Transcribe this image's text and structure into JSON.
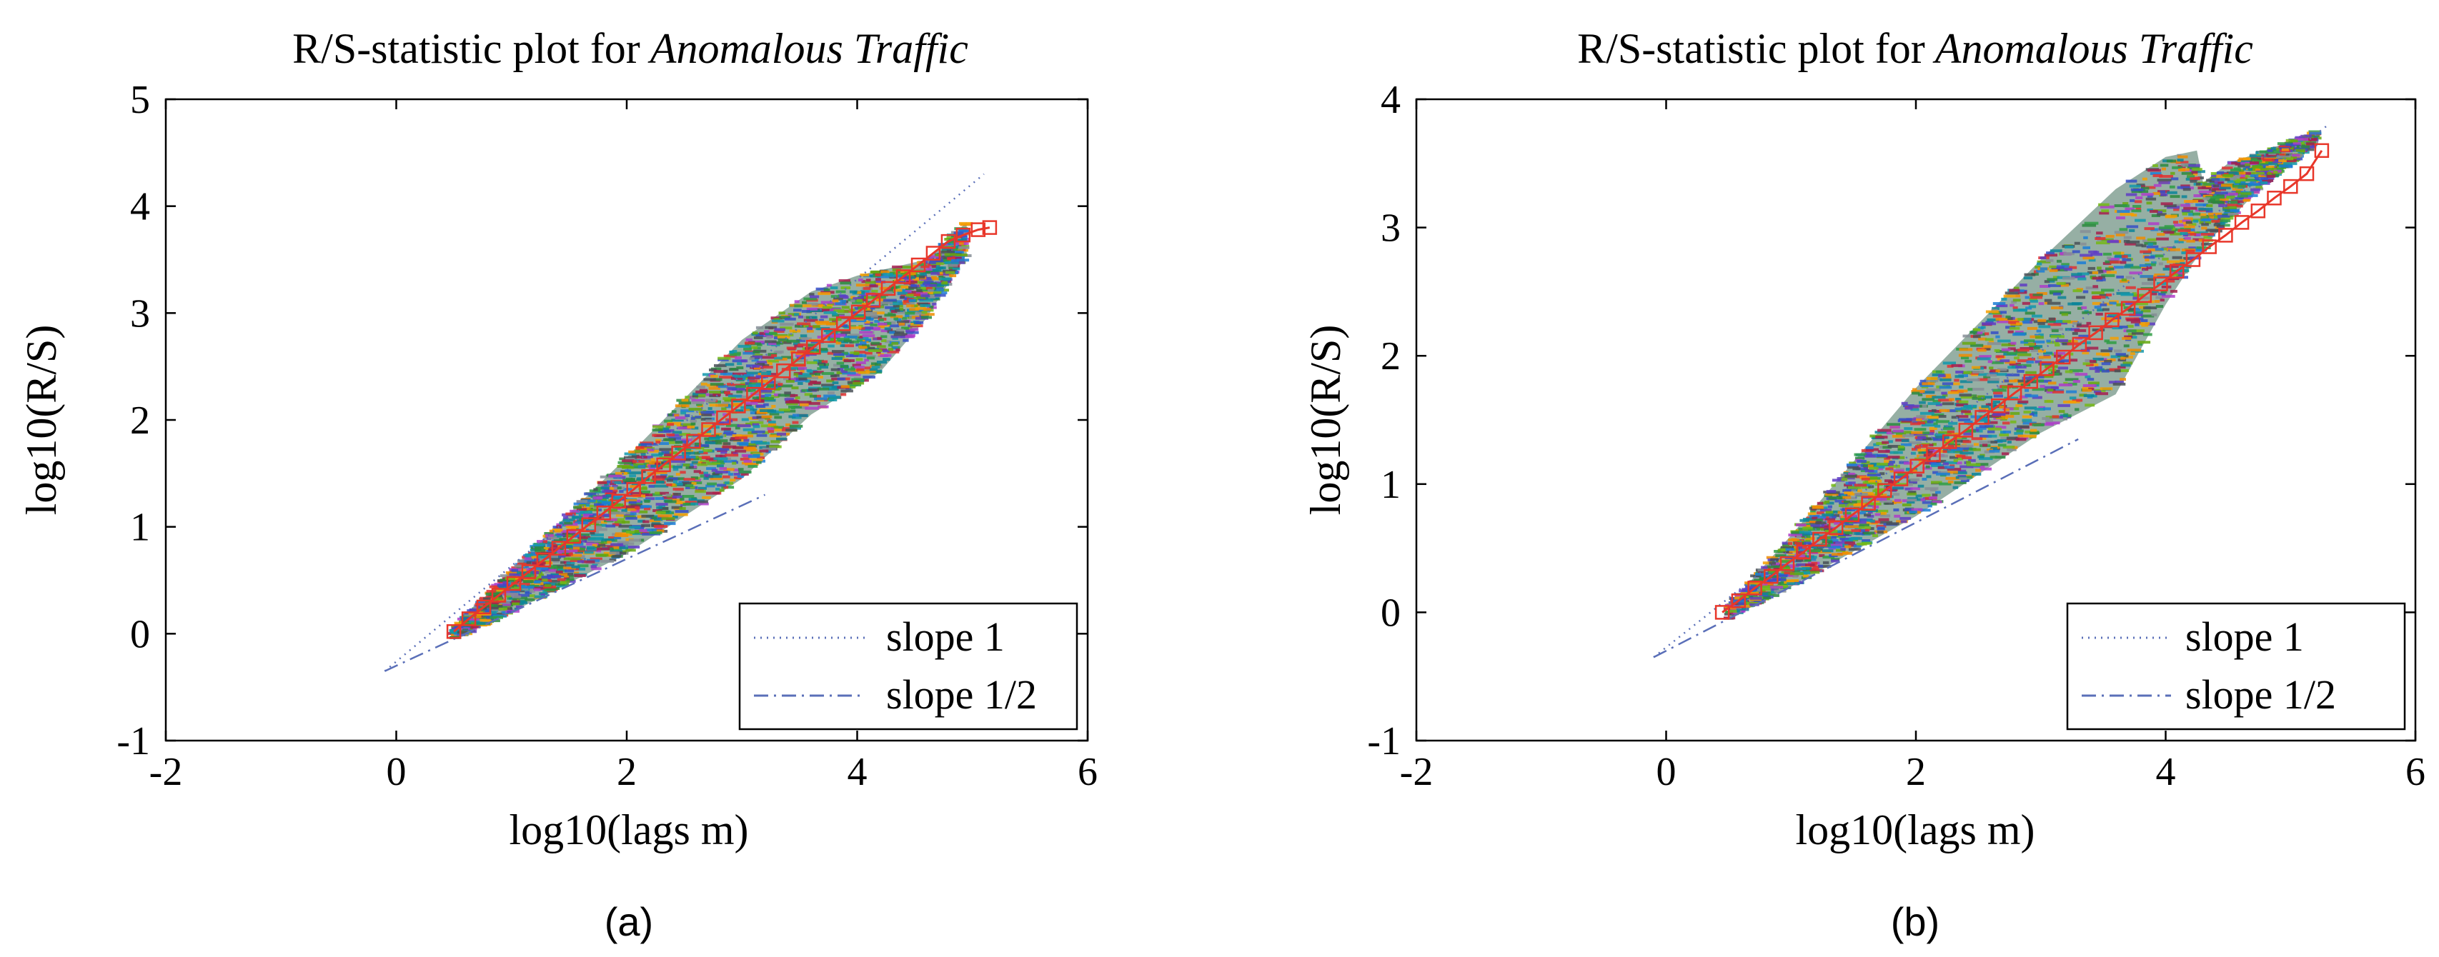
{
  "chart_data": [
    {
      "type": "scatter",
      "panel_label": "(a)",
      "title": "R/S-statistic plot for",
      "title_italic": "Anomalous Traffic",
      "xlabel": "log10(lags m)",
      "ylabel": "log10(R/S)",
      "xlim": [
        -2,
        6
      ],
      "ylim": [
        -1,
        5
      ],
      "xticks": [
        -2,
        0,
        2,
        4,
        6
      ],
      "yticks": [
        -1,
        0,
        1,
        2,
        3,
        4,
        5
      ],
      "xtick_labels": [
        "-2",
        "0",
        "2",
        "4",
        "6"
      ],
      "ytick_labels": [
        "-1",
        "0",
        "1",
        "2",
        "3",
        "4",
        "5"
      ],
      "legend": {
        "position": "bottom-right",
        "entries": [
          {
            "label": "slope 1",
            "style": "dotted"
          },
          {
            "label": "slope 1/2",
            "style": "dash-dot"
          }
        ]
      },
      "reference_lines": [
        {
          "name": "slope 1",
          "x": [
            -0.1,
            5.1
          ],
          "y": [
            -0.35,
            4.3
          ]
        },
        {
          "name": "slope 1/2",
          "x": [
            -0.1,
            3.2
          ],
          "y": [
            -0.35,
            1.3
          ]
        }
      ],
      "cloud": {
        "upper": [
          [
            0.5,
            0.05
          ],
          [
            1.0,
            0.6
          ],
          [
            2.0,
            1.65
          ],
          [
            3.0,
            2.75
          ],
          [
            3.6,
            3.2
          ],
          [
            4.0,
            3.35
          ],
          [
            4.6,
            3.5
          ],
          [
            4.95,
            3.85
          ]
        ],
        "lower": [
          [
            0.5,
            -0.05
          ],
          [
            1.0,
            0.2
          ],
          [
            2.0,
            0.75
          ],
          [
            3.0,
            1.45
          ],
          [
            3.6,
            2.05
          ],
          [
            4.2,
            2.45
          ],
          [
            4.6,
            2.95
          ],
          [
            4.95,
            3.55
          ]
        ]
      },
      "fit_markers": {
        "x": [
          0.5,
          0.63,
          0.76,
          0.89,
          1.02,
          1.15,
          1.28,
          1.41,
          1.54,
          1.67,
          1.8,
          1.93,
          2.06,
          2.19,
          2.32,
          2.45,
          2.58,
          2.71,
          2.84,
          2.97,
          3.1,
          3.23,
          3.36,
          3.49,
          3.62,
          3.75,
          3.88,
          4.01,
          4.14,
          4.27,
          4.4,
          4.53,
          4.66,
          4.79,
          4.92,
          5.05,
          5.15
        ],
        "y": [
          0.02,
          0.14,
          0.25,
          0.36,
          0.47,
          0.58,
          0.69,
          0.8,
          0.91,
          1.02,
          1.13,
          1.24,
          1.35,
          1.47,
          1.58,
          1.69,
          1.8,
          1.91,
          2.02,
          2.13,
          2.24,
          2.35,
          2.46,
          2.57,
          2.68,
          2.79,
          2.9,
          3.01,
          3.12,
          3.23,
          3.34,
          3.45,
          3.56,
          3.67,
          3.73,
          3.78,
          3.8
        ]
      }
    },
    {
      "type": "scatter",
      "panel_label": "(b)",
      "title": "R/S-statistic plot for",
      "title_italic": "Anomalous Traffic",
      "xlabel": "log10(lags m)",
      "ylabel": "log10(R/S)",
      "xlim": [
        -2,
        6
      ],
      "ylim": [
        -1,
        4
      ],
      "xticks": [
        -2,
        0,
        2,
        4,
        6
      ],
      "yticks": [
        -1,
        0,
        1,
        2,
        3,
        4
      ],
      "xtick_labels": [
        "-2",
        "0",
        "2",
        "4",
        "6"
      ],
      "ytick_labels": [
        "-1",
        "0",
        "1",
        "2",
        "3",
        "4"
      ],
      "legend": {
        "position": "bottom-right",
        "entries": [
          {
            "label": "slope 1",
            "style": "dotted"
          },
          {
            "label": "slope 1/2",
            "style": "dash-dot"
          }
        ]
      },
      "reference_lines": [
        {
          "name": "slope 1",
          "x": [
            -0.1,
            5.3
          ],
          "y": [
            -0.35,
            3.8
          ]
        },
        {
          "name": "slope 1/2",
          "x": [
            -0.1,
            3.3
          ],
          "y": [
            -0.35,
            1.35
          ]
        }
      ],
      "cloud": {
        "upper": [
          [
            0.5,
            0.05
          ],
          [
            1.0,
            0.6
          ],
          [
            2.0,
            1.75
          ],
          [
            3.0,
            2.75
          ],
          [
            3.6,
            3.3
          ],
          [
            4.0,
            3.55
          ],
          [
            4.25,
            3.6
          ],
          [
            4.3,
            3.35
          ],
          [
            4.5,
            3.5
          ],
          [
            4.8,
            3.6
          ],
          [
            5.2,
            3.75
          ]
        ],
        "lower": [
          [
            0.5,
            -0.05
          ],
          [
            1.0,
            0.2
          ],
          [
            2.0,
            0.75
          ],
          [
            3.0,
            1.4
          ],
          [
            3.6,
            1.7
          ],
          [
            4.0,
            2.4
          ],
          [
            4.2,
            2.7
          ],
          [
            4.4,
            2.95
          ],
          [
            4.8,
            3.35
          ],
          [
            5.2,
            3.65
          ]
        ]
      },
      "fit_markers": {
        "x": [
          0.45,
          0.58,
          0.71,
          0.84,
          0.97,
          1.1,
          1.23,
          1.36,
          1.49,
          1.62,
          1.75,
          1.88,
          2.01,
          2.14,
          2.27,
          2.4,
          2.53,
          2.66,
          2.79,
          2.92,
          3.05,
          3.18,
          3.31,
          3.44,
          3.57,
          3.7,
          3.83,
          3.96,
          4.09,
          4.22,
          4.35,
          4.48,
          4.61,
          4.74,
          4.87,
          5.0,
          5.13,
          5.25
        ],
        "y": [
          0.0,
          0.09,
          0.19,
          0.28,
          0.38,
          0.47,
          0.57,
          0.66,
          0.76,
          0.85,
          0.95,
          1.04,
          1.14,
          1.23,
          1.33,
          1.42,
          1.52,
          1.61,
          1.71,
          1.8,
          1.9,
          1.99,
          2.09,
          2.18,
          2.28,
          2.37,
          2.47,
          2.56,
          2.66,
          2.75,
          2.85,
          2.94,
          3.04,
          3.13,
          3.23,
          3.32,
          3.42,
          3.6
        ]
      }
    }
  ]
}
